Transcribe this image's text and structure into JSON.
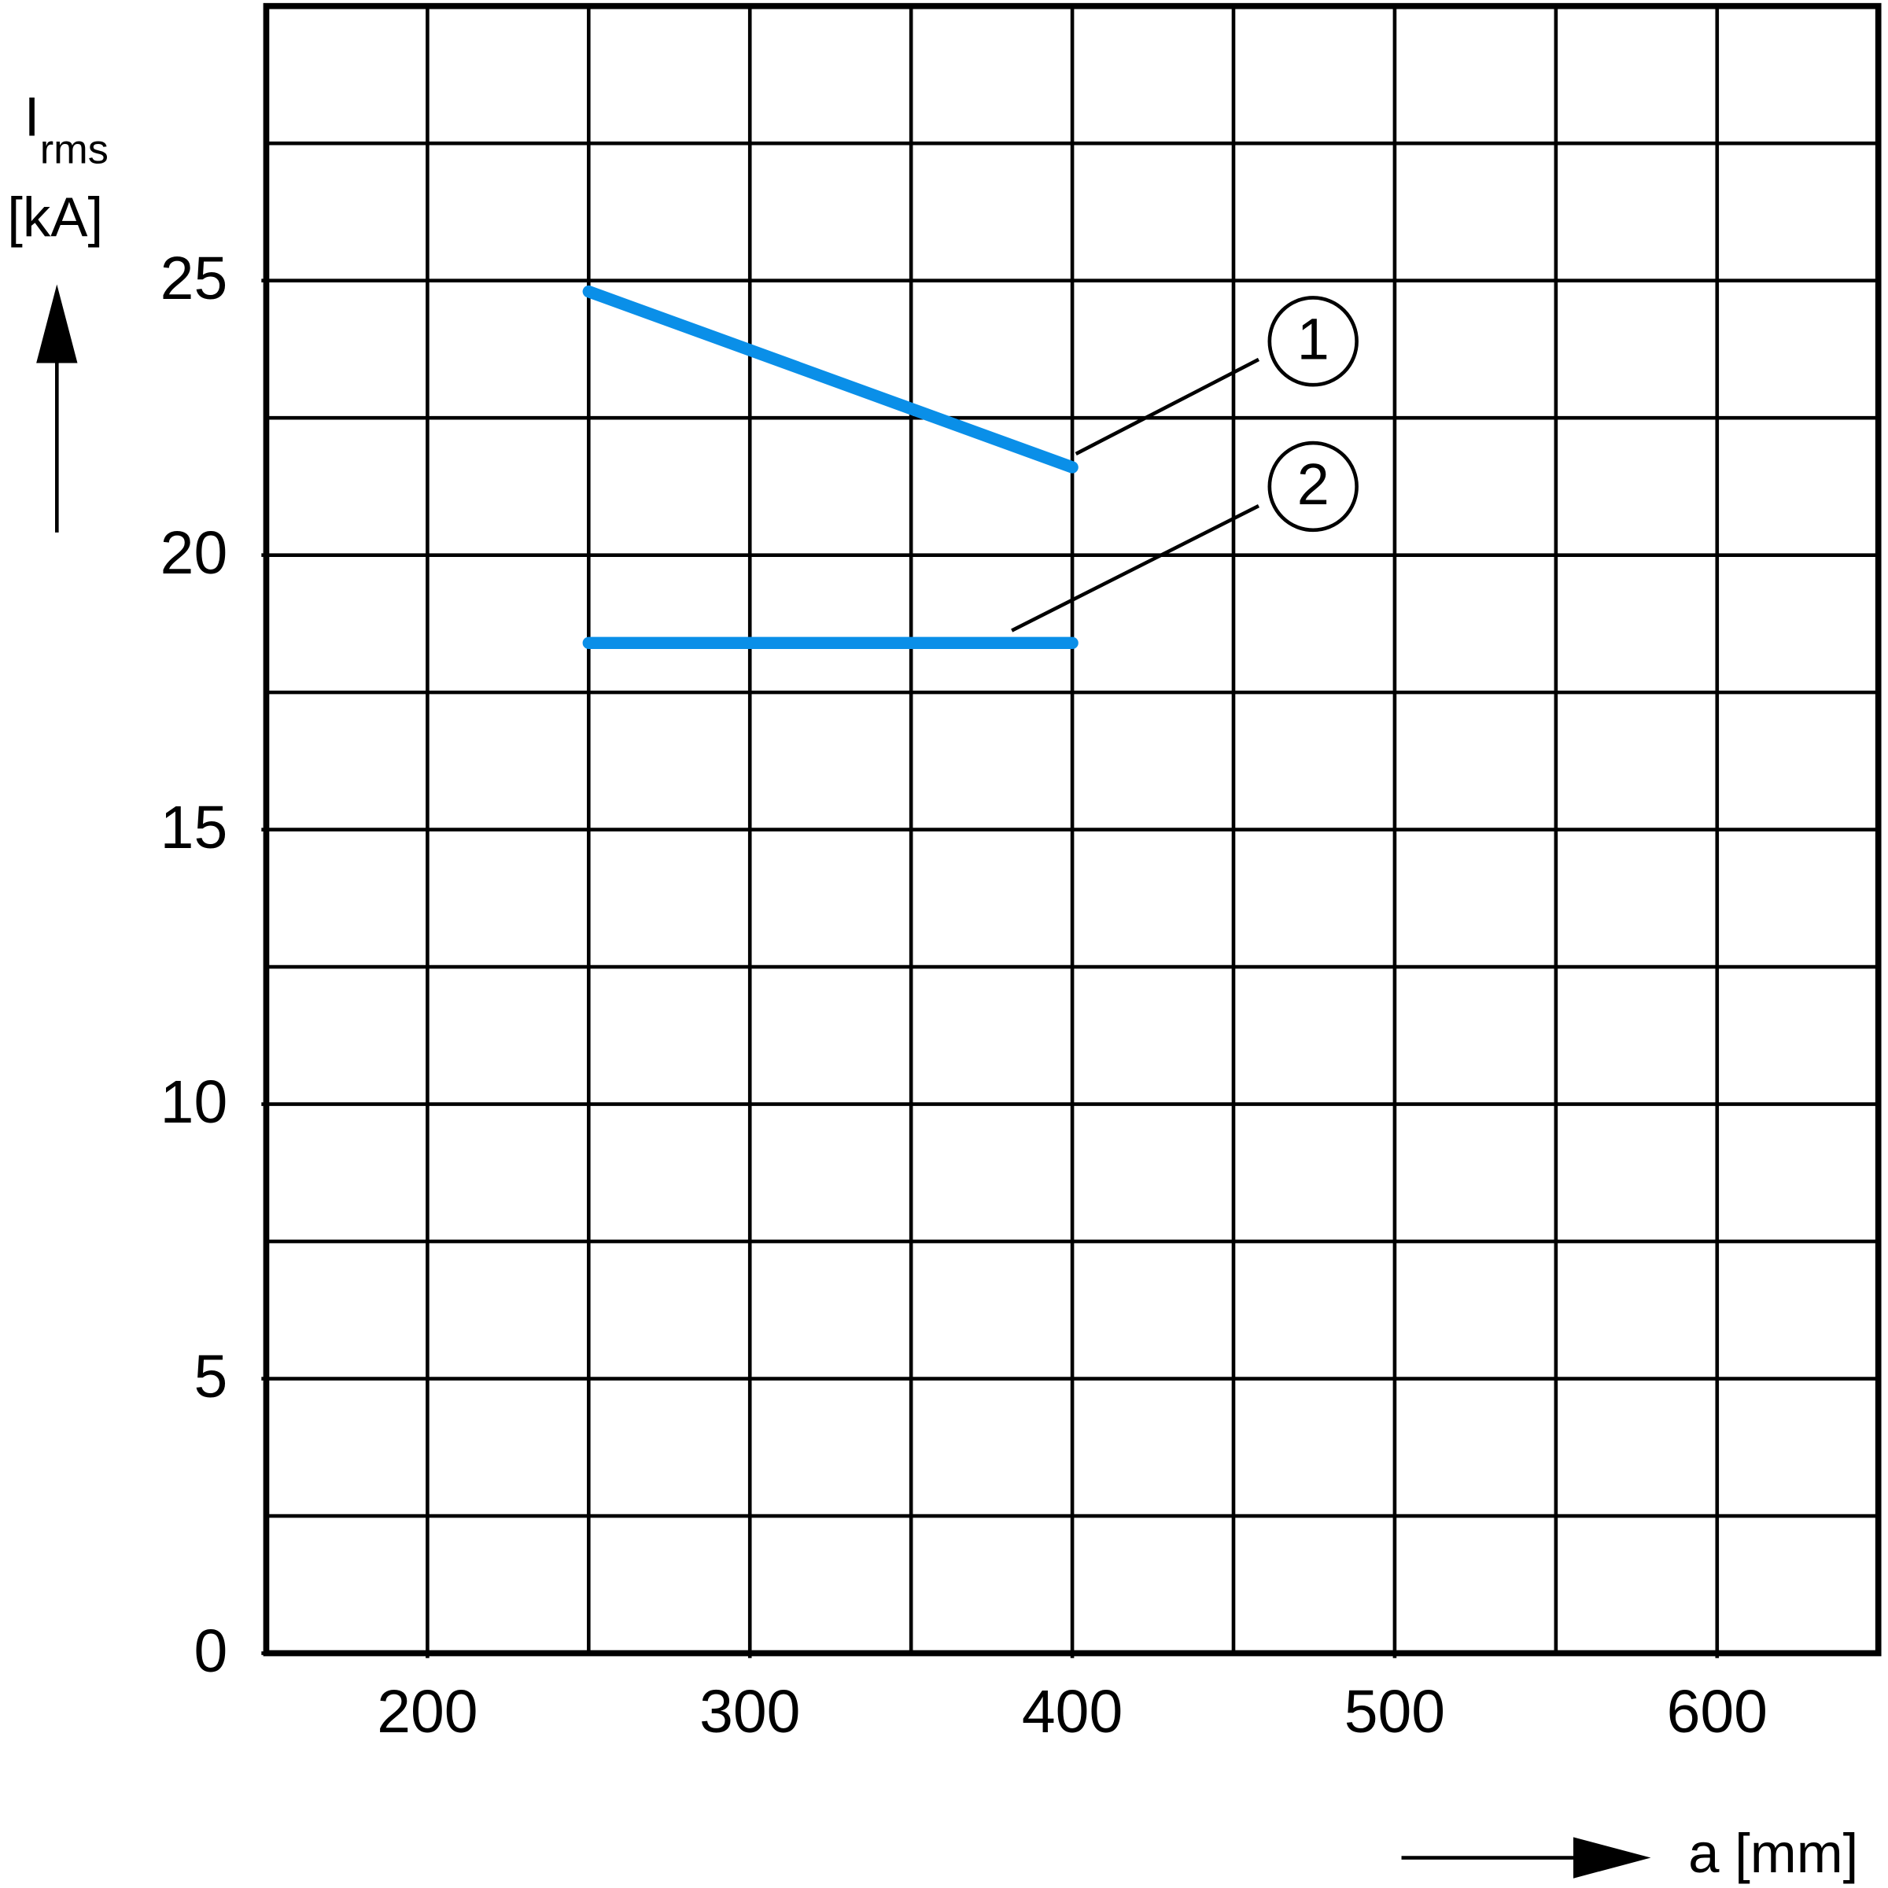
{
  "chart_data": {
    "type": "line",
    "ylabel": "I",
    "ylabel_sub": "rms",
    "ylabel_unit": "[kA]",
    "xlabel": "a [mm]",
    "xlim": [
      150,
      650
    ],
    "ylim": [
      0,
      30
    ],
    "xticks": [
      200,
      300,
      400,
      500,
      600
    ],
    "yticks": [
      0,
      5,
      10,
      15,
      20,
      25
    ],
    "xgrid": [
      150,
      200,
      250,
      300,
      350,
      400,
      450,
      500,
      550,
      600,
      650
    ],
    "ygrid": [
      0,
      2.5,
      5,
      7.5,
      10,
      12.5,
      15,
      17.5,
      20,
      22.5,
      25,
      27.5,
      30
    ],
    "grid": true,
    "series": [
      {
        "name": "1",
        "color": "#0a8fe8",
        "x": [
          250,
          400
        ],
        "values": [
          24.8,
          21.6
        ]
      },
      {
        "name": "2",
        "color": "#0a8fe8",
        "x": [
          250,
          400
        ],
        "values": [
          18.4,
          18.4
        ]
      }
    ]
  }
}
